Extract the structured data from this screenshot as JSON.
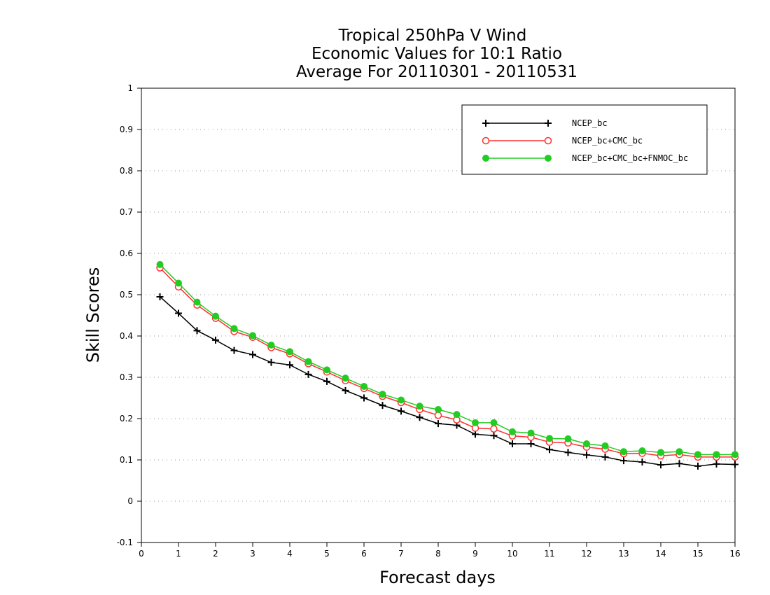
{
  "chart_data": {
    "type": "line",
    "title_lines": [
      "Tropical 250hPa V Wind",
      "Economic Values for 10:1 Ratio",
      "Average For 20110301 - 20110531"
    ],
    "xlabel": "Forecast days",
    "ylabel": "Skill Scores",
    "xlim": [
      0,
      16
    ],
    "ylim": [
      -0.1,
      1
    ],
    "x_ticks": [
      0,
      1,
      2,
      3,
      4,
      5,
      6,
      7,
      8,
      9,
      10,
      11,
      12,
      13,
      14,
      15,
      16
    ],
    "x_tick_labels": [
      "0",
      "1",
      "2",
      "3",
      "4",
      "5",
      "6",
      "7",
      "8",
      "9",
      "10",
      "11",
      "12",
      "13",
      "14",
      "15",
      "16"
    ],
    "y_ticks": [
      -0.1,
      0,
      0.1,
      0.2,
      0.3,
      0.4,
      0.5,
      0.6,
      0.7,
      0.8,
      0.9,
      1
    ],
    "y_tick_labels": [
      "-0.1",
      "0",
      "0.1",
      "0.2",
      "0.3",
      "0.4",
      "0.5",
      "0.6",
      "0.7",
      "0.8",
      "0.9",
      "1"
    ],
    "grid": "horizontal dotted",
    "legend_position": "top-right",
    "x": [
      0.5,
      1,
      1.5,
      2,
      2.5,
      3,
      3.5,
      4,
      4.5,
      5,
      5.5,
      6,
      6.5,
      7,
      7.5,
      8,
      8.5,
      9,
      9.5,
      10,
      10.5,
      11,
      11.5,
      12,
      12.5,
      13,
      13.5,
      14,
      14.5,
      15,
      15.5,
      16
    ],
    "series": [
      {
        "name": "NCEP_bc",
        "color": "#000000",
        "marker": "plus",
        "values": [
          0.495,
          0.455,
          0.413,
          0.39,
          0.365,
          0.355,
          0.336,
          0.33,
          0.307,
          0.29,
          0.268,
          0.25,
          0.232,
          0.218,
          0.203,
          0.188,
          0.184,
          0.162,
          0.159,
          0.139,
          0.139,
          0.125,
          0.118,
          0.112,
          0.107,
          0.098,
          0.095,
          0.088,
          0.091,
          0.085,
          0.09,
          0.089
        ]
      },
      {
        "name": "NCEP_bc+CMC_bc",
        "color": "#ff3030",
        "marker": "open-circle",
        "values": [
          0.565,
          0.519,
          0.475,
          0.443,
          0.411,
          0.397,
          0.372,
          0.357,
          0.333,
          0.313,
          0.292,
          0.273,
          0.254,
          0.239,
          0.222,
          0.208,
          0.197,
          0.177,
          0.175,
          0.158,
          0.155,
          0.143,
          0.141,
          0.131,
          0.126,
          0.115,
          0.116,
          0.11,
          0.113,
          0.107,
          0.107,
          0.107
        ]
      },
      {
        "name": "NCEP_bc+CMC_bc+FNMOC_bc",
        "color": "#22cc22",
        "marker": "filled-circle",
        "values": [
          0.573,
          0.528,
          0.482,
          0.448,
          0.418,
          0.401,
          0.378,
          0.362,
          0.338,
          0.318,
          0.298,
          0.278,
          0.259,
          0.245,
          0.23,
          0.222,
          0.21,
          0.19,
          0.19,
          0.168,
          0.165,
          0.152,
          0.151,
          0.139,
          0.134,
          0.12,
          0.122,
          0.118,
          0.12,
          0.113,
          0.113,
          0.113
        ]
      }
    ]
  }
}
